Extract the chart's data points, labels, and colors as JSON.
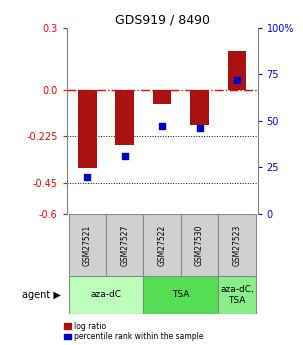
{
  "title": "GDS919 / 8490",
  "samples": [
    "GSM27521",
    "GSM27527",
    "GSM27522",
    "GSM27530",
    "GSM27523"
  ],
  "log_ratio": [
    -0.38,
    -0.265,
    -0.07,
    -0.17,
    0.185
  ],
  "percentile_rank": [
    20,
    31,
    47,
    46,
    72
  ],
  "ylim_left": [
    -0.6,
    0.3
  ],
  "ylim_right": [
    0,
    100
  ],
  "yticks_left": [
    0.3,
    0.0,
    -0.225,
    -0.45,
    -0.6
  ],
  "yticks_right": [
    100,
    75,
    50,
    25,
    0
  ],
  "groups": [
    {
      "label": "aza-dC",
      "indices": [
        0,
        1
      ],
      "color": "#bbffbb"
    },
    {
      "label": "TSA",
      "indices": [
        2,
        3
      ],
      "color": "#55dd55"
    },
    {
      "label": "aza-dC,\nTSA",
      "indices": [
        4
      ],
      "color": "#88ee88"
    }
  ],
  "bar_color": "#aa1111",
  "dot_color": "#0000cc",
  "legend_labels": [
    "log ratio",
    "percentile rank within the sample"
  ],
  "legend_colors": [
    "#aa1111",
    "#0000cc"
  ]
}
